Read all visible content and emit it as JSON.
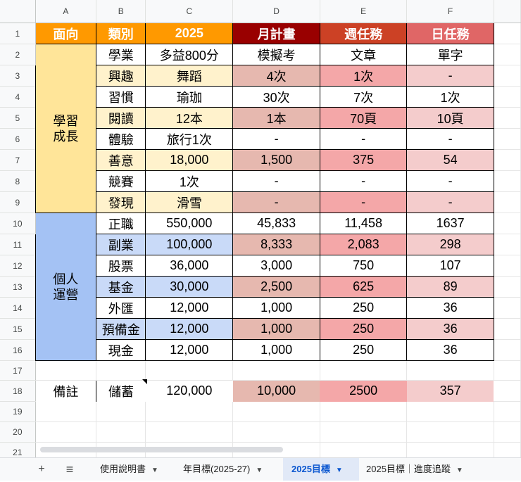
{
  "columns": [
    "A",
    "B",
    "C",
    "D",
    "E",
    "F"
  ],
  "rows": [
    "1",
    "2",
    "3",
    "4",
    "5",
    "6",
    "7",
    "8",
    "9",
    "10",
    "11",
    "12",
    "13",
    "14",
    "15",
    "16",
    "17",
    "18",
    "19",
    "20",
    "21"
  ],
  "headers": [
    "面向",
    "類別",
    "2025",
    "月計畫",
    "週任務",
    "日任務"
  ],
  "groups": {
    "growth": "學習\n成長",
    "finance": "個人\n運營",
    "note": "備註"
  },
  "growth_rows": [
    [
      "學業",
      "多益800分",
      "模擬考",
      "文章",
      "單字"
    ],
    [
      "興趣",
      "舞蹈",
      "4次",
      "1次",
      "-"
    ],
    [
      "習慣",
      "瑜珈",
      "30次",
      "7次",
      "1次"
    ],
    [
      "閱讀",
      "12本",
      "1本",
      "70頁",
      "10頁"
    ],
    [
      "體驗",
      "旅行1次",
      "-",
      "-",
      "-"
    ],
    [
      "善意",
      "18,000",
      "1,500",
      "375",
      "54"
    ],
    [
      "競賽",
      "1次",
      "-",
      "-",
      "-"
    ],
    [
      "發現",
      "滑雪",
      "-",
      "-",
      "-"
    ]
  ],
  "finance_rows": [
    [
      "正職",
      "550,000",
      "45,833",
      "11,458",
      "1637"
    ],
    [
      "副業",
      "100,000",
      "8,333",
      "2,083",
      "298"
    ],
    [
      "股票",
      "36,000",
      "3,000",
      "750",
      "107"
    ],
    [
      "基金",
      "30,000",
      "2,500",
      "625",
      "89"
    ],
    [
      "外匯",
      "12,000",
      "1,000",
      "250",
      "36"
    ],
    [
      "預備金",
      "12,000",
      "1,000",
      "250",
      "36"
    ],
    [
      "現金",
      "12,000",
      "1,000",
      "250",
      "36"
    ]
  ],
  "note_row": [
    "儲蓄",
    "120,000",
    "10,000",
    "2500",
    "357"
  ],
  "colors": {
    "hdr_a": "#ff9900",
    "hdr_b": "#ff9900",
    "hdr_c": "#ff9900",
    "hdr_d": "#990000",
    "hdr_e": "#cc4125",
    "hdr_f": "#e06666",
    "growth_group": "#ffe599",
    "growth_band": "#fff2cc",
    "finance_group": "#a4c2f4",
    "finance_band": "#c9daf8",
    "band_d": "#e6b8af",
    "band_e": "#f4a7a8",
    "band_f": "#f4cccc"
  },
  "tabs": {
    "add_icon": "+",
    "menu_icon": "≡",
    "items": [
      {
        "label": "使用說明書",
        "active": false
      },
      {
        "label": "年目標(2025-27)",
        "active": false
      },
      {
        "label": "2025目標",
        "active": true
      },
      {
        "label": "2025目標｜進度追蹤",
        "active": false
      }
    ],
    "dropdown_icon": "▼"
  }
}
